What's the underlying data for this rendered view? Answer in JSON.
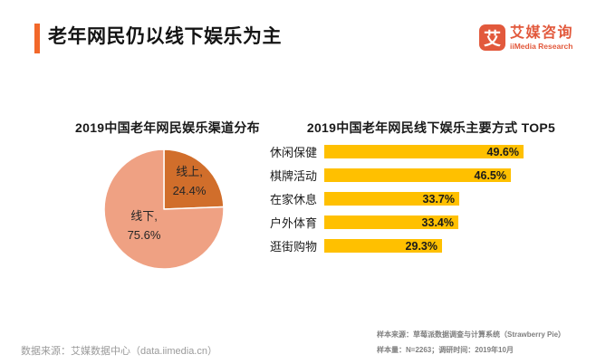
{
  "header": {
    "title": "老年网民仍以线下娱乐为主",
    "accent_color": "#F2682A",
    "logo": {
      "mark": "艾",
      "name_cn": "艾媒咨询",
      "name_en": "iiMedia Research",
      "color": "#E2593C"
    }
  },
  "chart_data": [
    {
      "type": "pie",
      "title": "2019中国老年网民娱乐渠道分布",
      "labels": [
        "线上",
        "线下"
      ],
      "values": [
        24.4,
        75.6
      ],
      "unit": "%",
      "colors": [
        "#D16E2B",
        "#EFA183"
      ],
      "start_angle_deg": 0,
      "direction": "clockwise",
      "slice_labels": [
        [
          "线上,",
          "24.4%"
        ],
        [
          "线下,",
          "75.6%"
        ]
      ],
      "label_position": "inside"
    },
    {
      "type": "bar",
      "title": "2019中国老年网民线下娱乐主要方式 TOP5",
      "orientation": "horizontal",
      "categories": [
        "休闲保健",
        "棋牌活动",
        "在家休息",
        "户外体育",
        "逛街购物"
      ],
      "values": [
        49.6,
        46.5,
        33.7,
        33.4,
        29.3
      ],
      "unit": "%",
      "bar_color": "#FFC000",
      "xlim": [
        0,
        55
      ],
      "grid": false,
      "data_labels": "inside-end"
    }
  ],
  "footer": {
    "source_left": "数据来源：艾媒数据中心（data.iimedia.cn）",
    "note_line1": "样本来源：草莓派数据调查与计算系统（Strawberry Pie）",
    "note_line2": "样本量：N=2263；调研时间：2019年10月"
  }
}
